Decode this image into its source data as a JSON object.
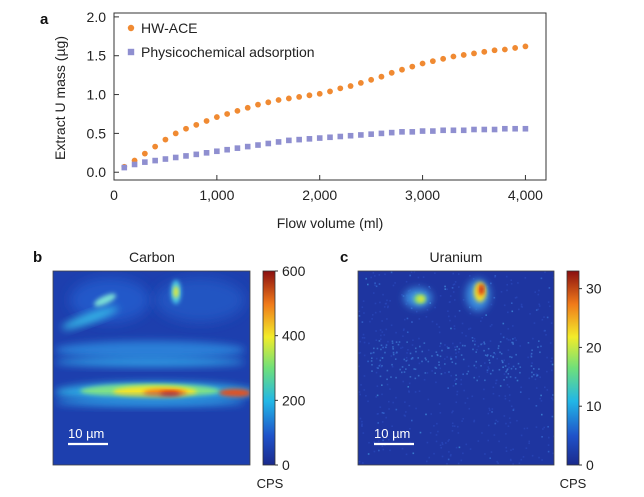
{
  "chart_data": [
    {
      "panel": "a",
      "type": "scatter",
      "xlabel": "Flow volume (ml)",
      "ylabel": "Extract U mass (µg)",
      "xlim": [
        0,
        4200
      ],
      "ylim": [
        -0.1,
        2.05
      ],
      "xticks": [
        0,
        1000,
        2000,
        3000,
        4000
      ],
      "xtick_labels": [
        "0",
        "1,000",
        "2,000",
        "3,000",
        "4,000"
      ],
      "yticks": [
        0,
        0.5,
        1,
        1.5,
        2
      ],
      "ytick_labels": [
        "0.0",
        "0.5",
        "1.0",
        "1.5",
        "2.0"
      ],
      "legend_position": "top-left",
      "series": [
        {
          "name": "HW-ACE",
          "color": "#f08a32",
          "marker": "circle",
          "x": [
            100,
            200,
            300,
            400,
            500,
            600,
            700,
            800,
            900,
            1000,
            1100,
            1200,
            1300,
            1400,
            1500,
            1600,
            1700,
            1800,
            1900,
            2000,
            2100,
            2200,
            2300,
            2400,
            2500,
            2600,
            2700,
            2800,
            2900,
            3000,
            3100,
            3200,
            3300,
            3400,
            3500,
            3600,
            3700,
            3800,
            3900,
            4000
          ],
          "y": [
            0.07,
            0.15,
            0.24,
            0.33,
            0.42,
            0.5,
            0.56,
            0.61,
            0.66,
            0.71,
            0.75,
            0.79,
            0.83,
            0.87,
            0.9,
            0.93,
            0.95,
            0.97,
            0.99,
            1.01,
            1.04,
            1.08,
            1.11,
            1.15,
            1.19,
            1.23,
            1.28,
            1.32,
            1.36,
            1.4,
            1.43,
            1.46,
            1.49,
            1.51,
            1.53,
            1.55,
            1.57,
            1.58,
            1.6,
            1.62
          ]
        },
        {
          "name": "Physicochemical adsorption",
          "color": "#8f8fd0",
          "marker": "square",
          "x": [
            100,
            200,
            300,
            400,
            500,
            600,
            700,
            800,
            900,
            1000,
            1100,
            1200,
            1300,
            1400,
            1500,
            1600,
            1700,
            1800,
            1900,
            2000,
            2100,
            2200,
            2300,
            2400,
            2500,
            2600,
            2700,
            2800,
            2900,
            3000,
            3100,
            3200,
            3300,
            3400,
            3500,
            3600,
            3700,
            3800,
            3900,
            4000
          ],
          "y": [
            0.06,
            0.1,
            0.13,
            0.15,
            0.17,
            0.19,
            0.21,
            0.23,
            0.25,
            0.27,
            0.29,
            0.31,
            0.33,
            0.35,
            0.37,
            0.39,
            0.41,
            0.42,
            0.43,
            0.44,
            0.45,
            0.46,
            0.47,
            0.48,
            0.49,
            0.5,
            0.51,
            0.52,
            0.52,
            0.53,
            0.53,
            0.54,
            0.54,
            0.54,
            0.55,
            0.55,
            0.55,
            0.56,
            0.56,
            0.56
          ]
        }
      ]
    },
    {
      "panel": "b",
      "type": "heatmap",
      "title": "Carbon",
      "colorbar_ticks": [
        0,
        200,
        400,
        600
      ],
      "colorbar_label": "CPS",
      "scale_bar": "10 µm",
      "colormap": "jet"
    },
    {
      "panel": "c",
      "type": "heatmap",
      "title": "Uranium",
      "colorbar_ticks": [
        0,
        10,
        20,
        30
      ],
      "colorbar_label": "CPS",
      "scale_bar": "10 µm",
      "colormap": "jet"
    }
  ],
  "panel_labels": [
    "a",
    "b",
    "c"
  ]
}
